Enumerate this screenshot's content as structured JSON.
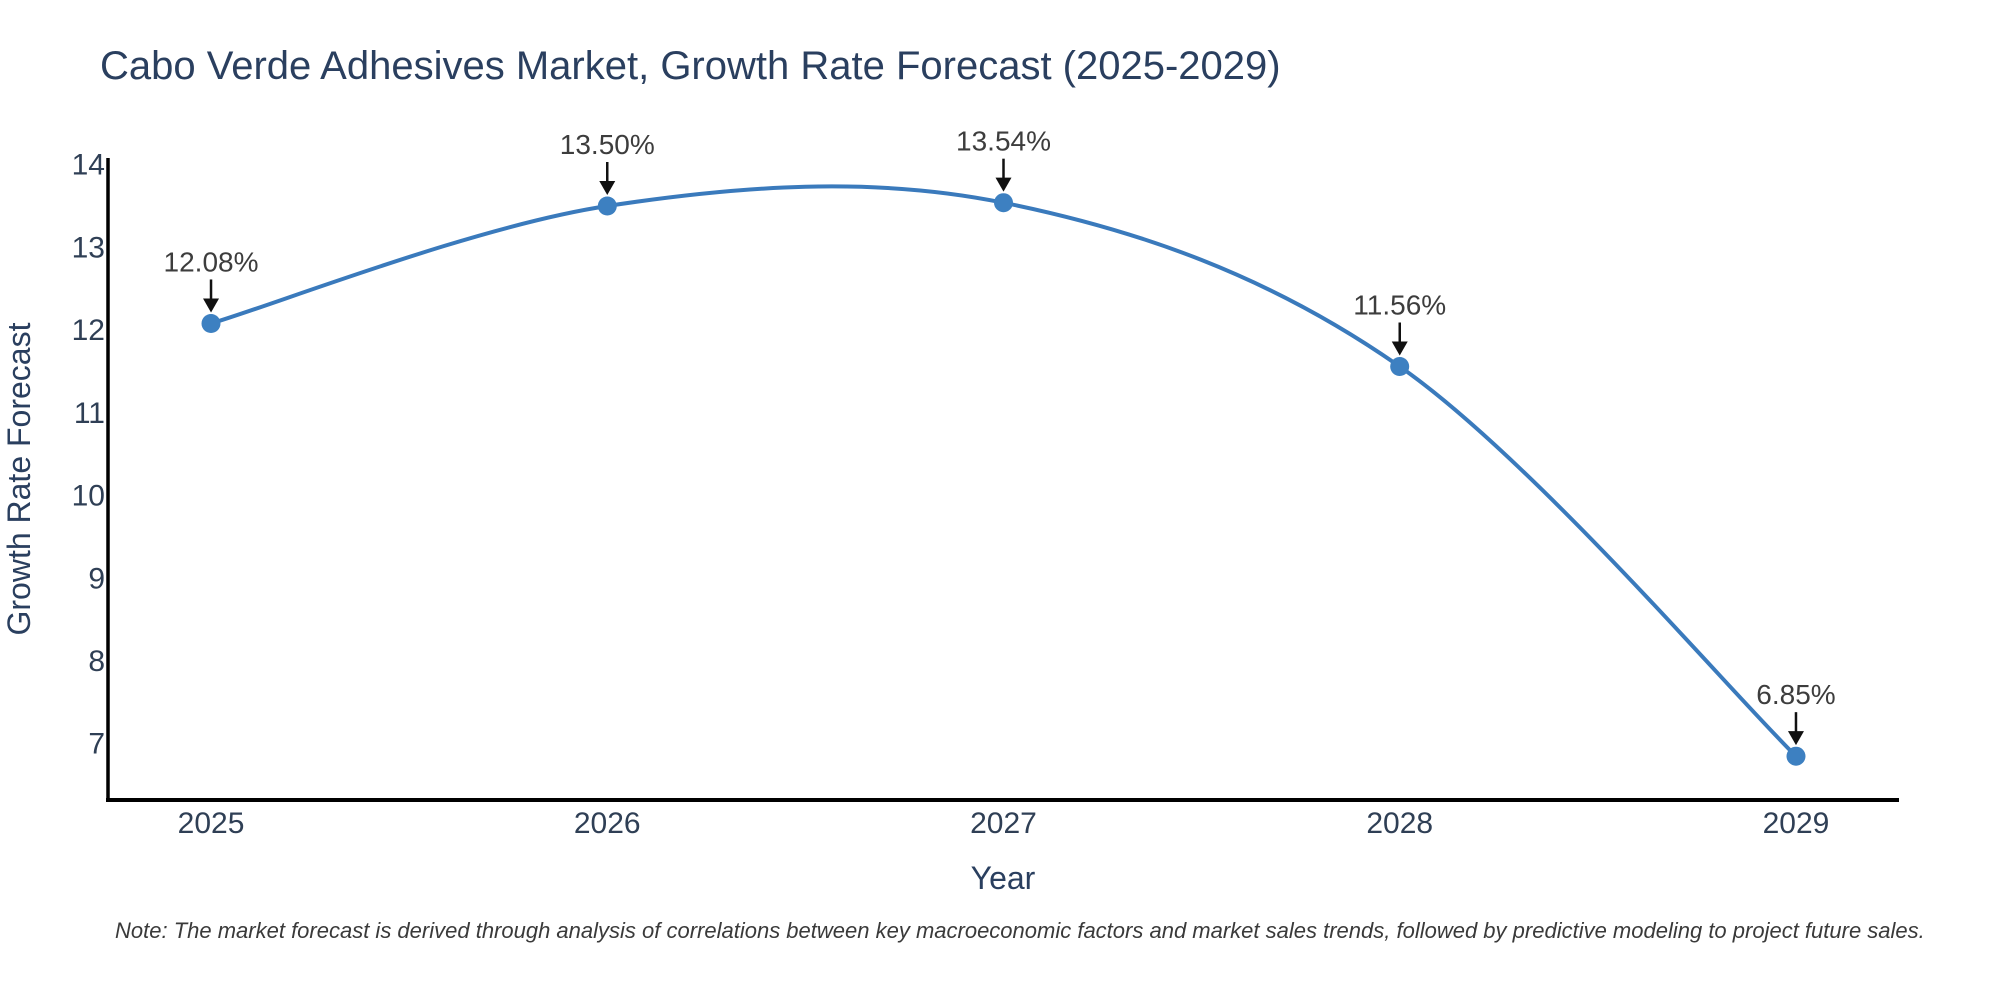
{
  "note": "Note: The market forecast is derived through analysis of correlations between key macroeconomic factors and market sales trends, followed by predictive modeling to project future sales.",
  "chart_data": {
    "type": "line",
    "line_shape": "spline",
    "title": "Cabo Verde Adhesives Market, Growth Rate Forecast (2025-2029)",
    "xlabel": "Year",
    "ylabel": "Growth Rate Forecast",
    "x": [
      2025,
      2026,
      2027,
      2028,
      2029
    ],
    "y": [
      12.08,
      13.5,
      13.54,
      11.56,
      6.85
    ],
    "point_labels": [
      "12.08%",
      "13.50%",
      "13.54%",
      "11.56%",
      "6.85%"
    ],
    "xticks": [
      "2025",
      "2026",
      "2027",
      "2028",
      "2029"
    ],
    "yticks": [
      7,
      8,
      9,
      10,
      11,
      12,
      13,
      14
    ],
    "xlim": [
      2024.74,
      2029.26
    ],
    "ylim": [
      6.32,
      14.08
    ],
    "grid": false,
    "legend": false,
    "marker_size_px": 19,
    "colors": {
      "line": "#3a7abc",
      "marker": "#3d80c1",
      "axis_line": "#000000",
      "heading_text": "#2a3f5f",
      "tick_text": "#2f3f55",
      "annotation_text": "#3d3d3d",
      "arrow": "#111111",
      "note_text": "#3a3a3a",
      "background": "#ffffff"
    }
  }
}
